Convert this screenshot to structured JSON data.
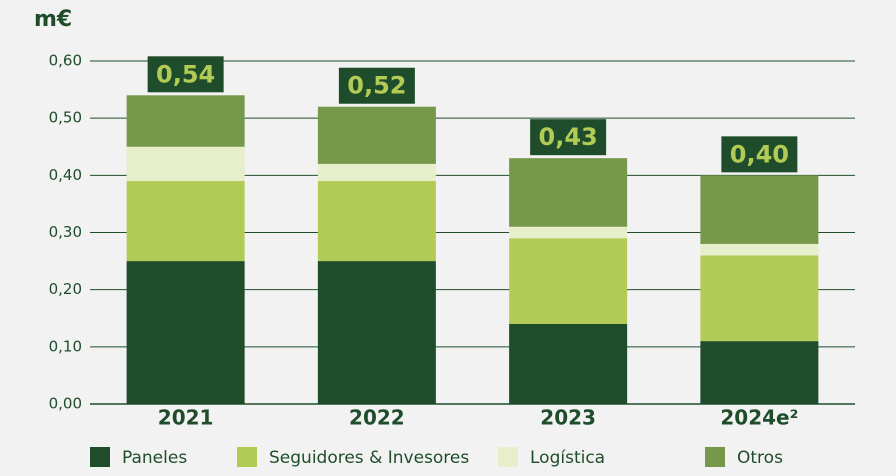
{
  "chart_data": {
    "type": "stacked-bar",
    "title": "m€",
    "categories": [
      "2021",
      "2022",
      "2023",
      "2024e²"
    ],
    "series": [
      {
        "name": "Paneles",
        "color": "#1f4d2b",
        "values": [
          0.25,
          0.25,
          0.14,
          0.11
        ]
      },
      {
        "name": "Seguidores & Invesores",
        "color": "#b2cb55",
        "values": [
          0.14,
          0.14,
          0.15,
          0.15
        ]
      },
      {
        "name": "Logística",
        "color": "#e6efc9",
        "values": [
          0.06,
          0.03,
          0.02,
          0.02
        ]
      },
      {
        "name": "Otros",
        "color": "#76984a",
        "values": [
          0.09,
          0.1,
          0.12,
          0.12
        ]
      }
    ],
    "totals": [
      0.54,
      0.52,
      0.43,
      0.4
    ],
    "value_labels": [
      "0,54",
      "0,52",
      "0,43",
      "0,40"
    ],
    "ylim": [
      0,
      0.6
    ],
    "yticks": [
      {
        "value": 0,
        "label": "0,00"
      },
      {
        "value": 0.1,
        "label": "0,10"
      },
      {
        "value": 0.2,
        "label": "0,20"
      },
      {
        "value": 0.3,
        "label": "0,30"
      },
      {
        "value": 0.4,
        "label": "0,40"
      },
      {
        "value": 0.5,
        "label": "0,50"
      },
      {
        "value": 0.6,
        "label": "0,60"
      }
    ],
    "grid": true
  }
}
